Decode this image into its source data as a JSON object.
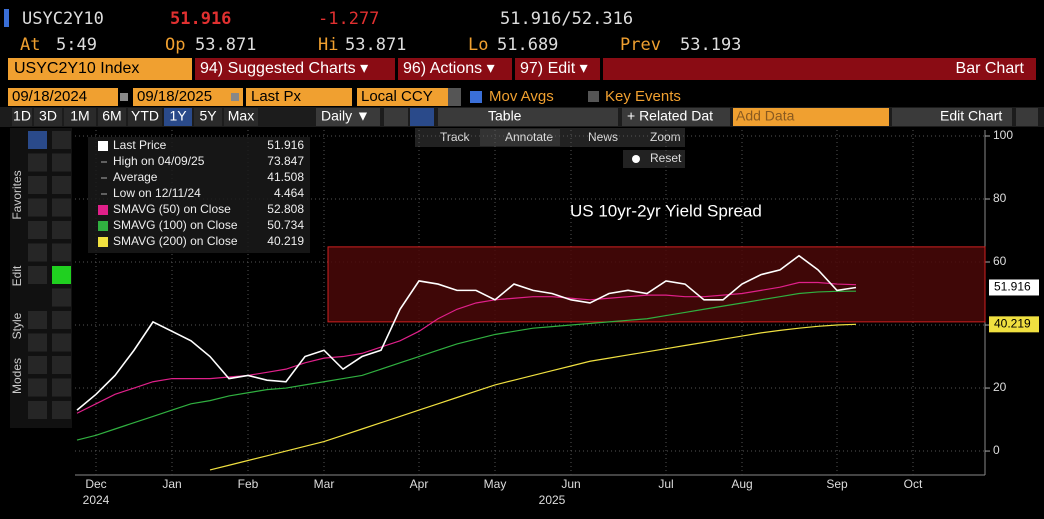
{
  "header": {
    "ticker": "USYC2Y10",
    "last": "51.916",
    "change": "-1.277",
    "bid_ask": "51.916/52.316",
    "at_label": "At",
    "at": "5:49",
    "open_label": "Op",
    "open": "53.871",
    "high_label": "Hi",
    "high": "53.871",
    "low_label": "Lo",
    "low": "51.689",
    "prev_label": "Prev",
    "prev": "53.193"
  },
  "menu": {
    "security": "USYC2Y10 Index",
    "suggested": "94) Suggested Charts ▾",
    "actions": "96) Actions ▾",
    "edit": "97) Edit ▾",
    "chart_type": "Bar Chart"
  },
  "controls": {
    "start_date": "09/18/2024",
    "end_date": "09/18/2025",
    "field": "Last Px",
    "currency": "Local CCY",
    "mov_avgs": "Mov Avgs",
    "key_events": "Key Events"
  },
  "toolbar": {
    "periods": [
      "1D",
      "3D",
      "1M",
      "6M",
      "YTD",
      "1Y",
      "5Y",
      "Max"
    ],
    "frequency": "Daily ▼",
    "table": "Table",
    "related": "+ Related Dat",
    "add_data": "Add Data",
    "edit_chart": "Edit Chart"
  },
  "tools": {
    "track": "Track",
    "annotate": "Annotate",
    "news": "News",
    "zoom": "Zoom",
    "reset": "Reset"
  },
  "side_tabs": [
    "Favorites",
    "Edit",
    "Style",
    "Modes"
  ],
  "chart_data": {
    "type": "line",
    "title": "US 10yr-2yr Yield Spread",
    "categories": [
      null,
      "Dec",
      null,
      null,
      null,
      "Jan",
      null,
      null,
      null,
      "Feb",
      null,
      null,
      null,
      "Mar",
      null,
      null,
      null,
      null,
      "Apr",
      null,
      null,
      null,
      "May",
      null,
      null,
      null,
      "Jun",
      null,
      null,
      null,
      null,
      "Jul",
      null,
      null,
      null,
      "Aug",
      null,
      null,
      null,
      null,
      "Sep",
      null,
      null,
      null,
      "Oct",
      null,
      null,
      null
    ],
    "years": [
      {
        "label": "2024",
        "at": 1
      },
      {
        "label": "2025",
        "at": 25
      }
    ],
    "ylim": [
      -7.6,
      101.9
    ],
    "yticks": [
      0,
      20,
      40,
      60,
      80,
      100
    ],
    "grid": true,
    "highlight": {
      "ymin": 41,
      "ymax": 64.8,
      "color": "#4a0808"
    },
    "series": [
      {
        "name": "Last Price",
        "color": "#ffffff",
        "values": [
          13,
          18,
          24,
          32,
          41,
          38,
          35,
          30,
          23,
          24,
          22.5,
          22,
          30,
          32,
          26,
          30,
          32,
          45,
          54,
          53,
          51,
          51,
          48,
          53,
          51,
          50,
          48,
          47,
          50,
          51,
          50,
          54,
          53,
          48,
          48,
          53,
          56,
          57.5,
          62,
          57.5,
          51,
          51.916,
          null,
          null,
          null,
          null,
          null,
          null
        ]
      },
      {
        "name": "SMAVG (50) on Close",
        "color": "#e0208a",
        "values": [
          12,
          15,
          18,
          20,
          22,
          23,
          23,
          23,
          23.5,
          24,
          25,
          26,
          28,
          29.5,
          30,
          31,
          33,
          35,
          38,
          42,
          45,
          47,
          48,
          48.5,
          49,
          49,
          48.5,
          48,
          48.5,
          49,
          49.5,
          49.5,
          49,
          49,
          49.5,
          50,
          51,
          52,
          53.5,
          53.5,
          53,
          52.808,
          null,
          null,
          null,
          null,
          null,
          null
        ]
      },
      {
        "name": "SMAVG (100) on Close",
        "color": "#30b040",
        "values": [
          3.5,
          5,
          7,
          9,
          11,
          13,
          15,
          16,
          17.5,
          18.5,
          19.5,
          20,
          21,
          22,
          23,
          24,
          26,
          28,
          30,
          32,
          34,
          35.5,
          37,
          38,
          39,
          39.5,
          40,
          40.5,
          41,
          41.5,
          42,
          43,
          44,
          45,
          46,
          47,
          48,
          49,
          50,
          50.5,
          50.7,
          50.734,
          null,
          null,
          null,
          null,
          null,
          null
        ]
      },
      {
        "name": "SMAVG (200) on Close",
        "color": "#f0e040",
        "values": [
          null,
          null,
          null,
          null,
          null,
          null,
          null,
          -6,
          -4.5,
          -3,
          -1.5,
          0,
          1.5,
          3,
          5,
          7,
          9,
          11,
          13,
          15,
          17,
          19,
          21,
          22.5,
          24,
          25.5,
          27,
          28.5,
          29.5,
          30.5,
          31.5,
          32.5,
          33.5,
          34.5,
          35.5,
          36.5,
          37.5,
          38.3,
          39,
          39.6,
          40,
          40.219,
          null,
          null,
          null,
          null,
          null,
          null
        ]
      }
    ],
    "stats": [
      {
        "label": "High on 04/09/25",
        "value": 73.847
      },
      {
        "label": "Average",
        "value": 41.508
      },
      {
        "label": "Low on 12/11/24",
        "value": 4.464
      }
    ]
  }
}
